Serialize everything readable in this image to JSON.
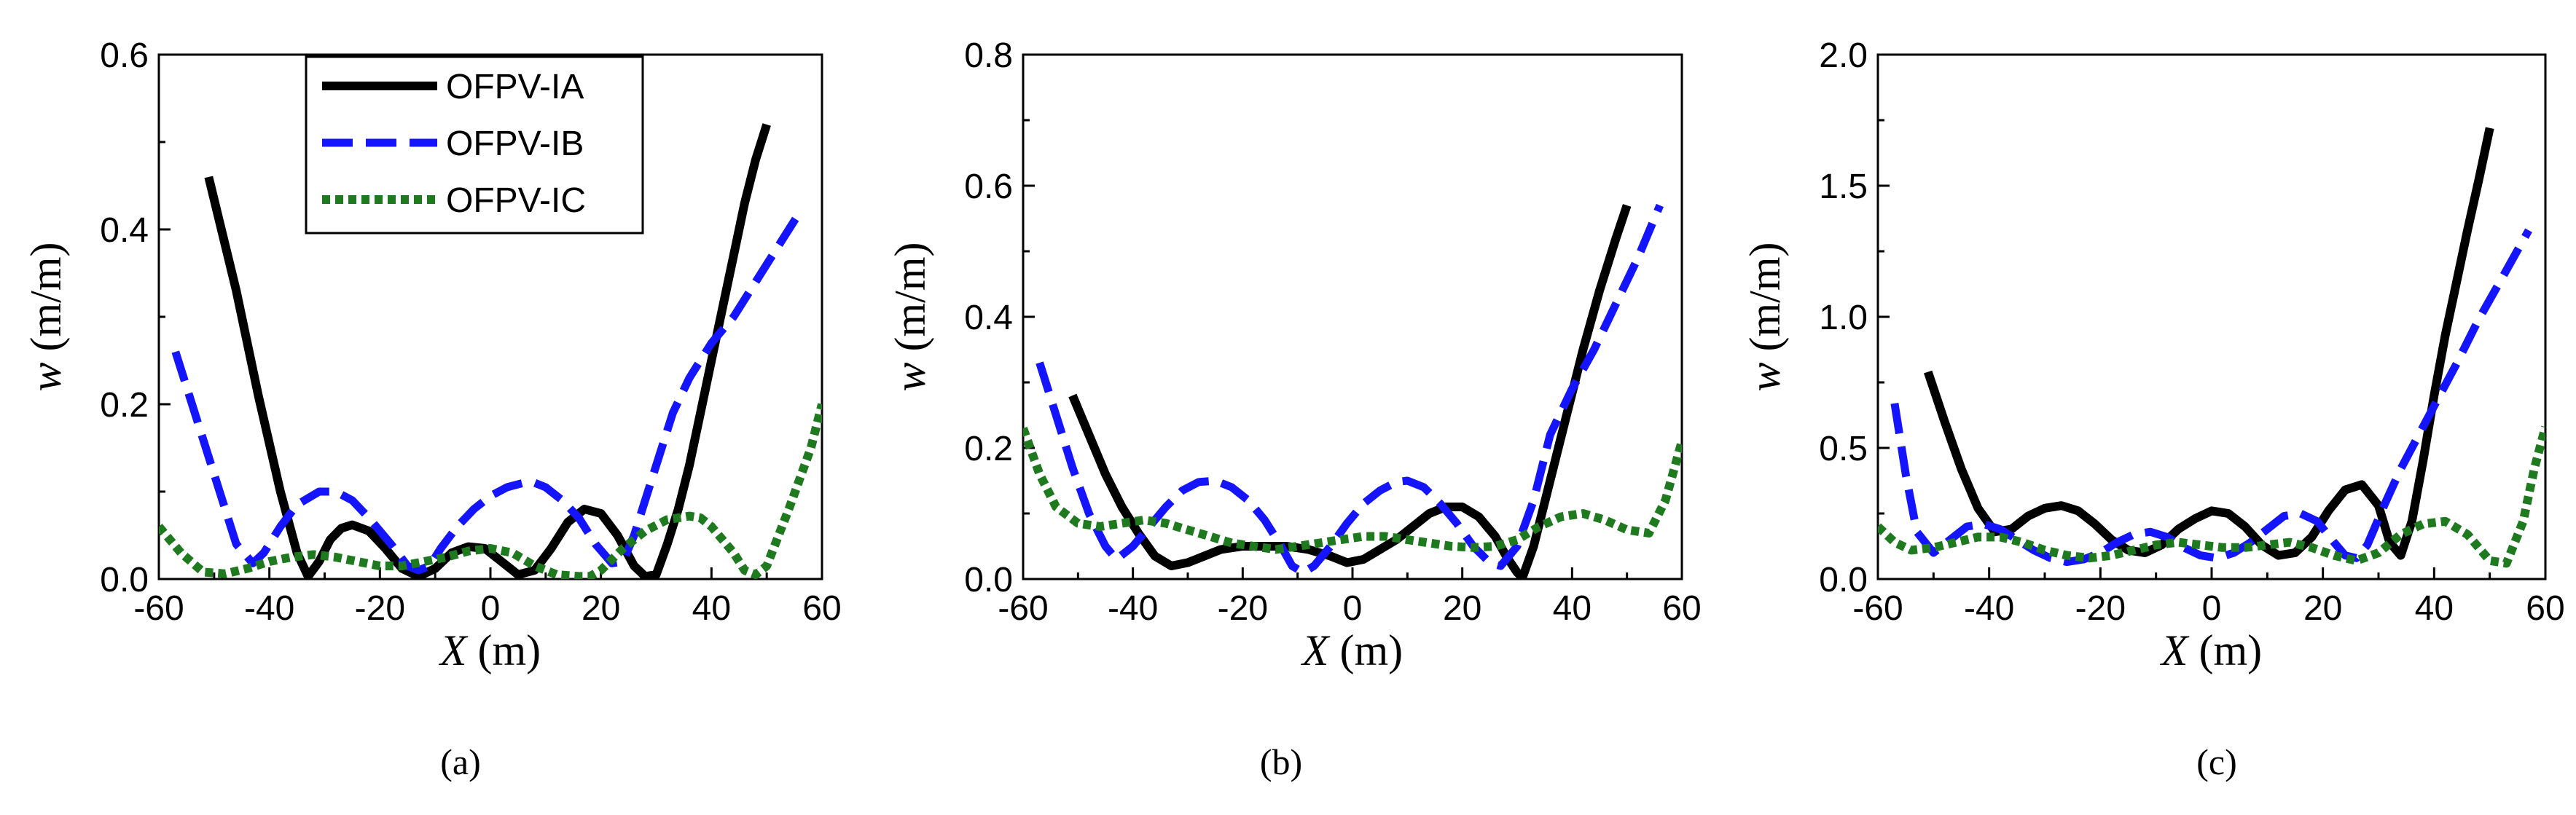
{
  "colors": {
    "OFPV-IA": "#000000",
    "OFPV-IB": "#1414ff",
    "OFPV-IC": "#1f7a1f"
  },
  "legend": [
    "OFPV-IA",
    "OFPV-IB",
    "OFPV-IC"
  ],
  "chart_data": [
    {
      "type": "line",
      "caption": "(a)",
      "xlabel_var": "X",
      "xlabel_unit": "(m)",
      "ylabel_var": "w",
      "ylabel_unit": "(m/m)",
      "xlim": [
        -60,
        60
      ],
      "ylim": [
        0,
        0.6
      ],
      "xticks": [
        -60,
        -40,
        -20,
        0,
        20,
        40,
        60
      ],
      "yticks": [
        "0.0",
        "0.2",
        "0.4",
        "0.6"
      ],
      "has_legend": true,
      "series": [
        {
          "name": "OFPV-IA",
          "style": "solid",
          "x": [
            -51,
            -46,
            -42,
            -38,
            -35,
            -33,
            -31,
            -29,
            -27,
            -25,
            -22,
            -19,
            -16,
            -13,
            -10,
            -7,
            -4,
            -1,
            2,
            5,
            8,
            11,
            14,
            17,
            20,
            23,
            26,
            28,
            30,
            32,
            34,
            36,
            38,
            40,
            42,
            44,
            46,
            48,
            50
          ],
          "y": [
            0.46,
            0.33,
            0.21,
            0.1,
            0.03,
            0.003,
            0.02,
            0.045,
            0.058,
            0.062,
            0.055,
            0.035,
            0.012,
            0.003,
            0.012,
            0.03,
            0.037,
            0.035,
            0.02,
            0.005,
            0.01,
            0.035,
            0.065,
            0.08,
            0.075,
            0.05,
            0.015,
            0.003,
            0.005,
            0.04,
            0.08,
            0.13,
            0.19,
            0.25,
            0.31,
            0.37,
            0.43,
            0.48,
            0.52
          ]
        },
        {
          "name": "OFPV-IB",
          "style": "dashed",
          "x": [
            -57,
            -53,
            -49,
            -46,
            -43,
            -41,
            -38,
            -35,
            -31,
            -28,
            -25,
            -22,
            -18,
            -15,
            -13,
            -11,
            -9,
            -6,
            -3,
            0,
            3,
            6,
            8,
            10,
            13,
            16,
            19,
            22,
            24,
            26,
            28,
            30,
            33,
            36,
            40,
            44,
            48,
            52,
            56
          ],
          "y": [
            0.26,
            0.18,
            0.1,
            0.04,
            0.018,
            0.03,
            0.06,
            0.085,
            0.1,
            0.1,
            0.09,
            0.07,
            0.04,
            0.015,
            0.01,
            0.015,
            0.035,
            0.06,
            0.08,
            0.095,
            0.105,
            0.11,
            0.11,
            0.105,
            0.09,
            0.07,
            0.04,
            0.018,
            0.02,
            0.05,
            0.09,
            0.13,
            0.19,
            0.23,
            0.27,
            0.3,
            0.34,
            0.38,
            0.42
          ]
        },
        {
          "name": "OFPV-IC",
          "style": "dotted",
          "x": [
            -60,
            -56,
            -52,
            -48,
            -44,
            -40,
            -36,
            -32,
            -28,
            -24,
            -20,
            -16,
            -12,
            -8,
            -4,
            0,
            4,
            8,
            12,
            16,
            18,
            20,
            24,
            28,
            32,
            36,
            38,
            40,
            44,
            46,
            48,
            50,
            54,
            58,
            60
          ],
          "y": [
            0.06,
            0.03,
            0.008,
            0.006,
            0.012,
            0.02,
            0.025,
            0.028,
            0.025,
            0.02,
            0.015,
            0.015,
            0.02,
            0.025,
            0.032,
            0.035,
            0.03,
            0.015,
            0.005,
            0.003,
            0.003,
            0.01,
            0.035,
            0.055,
            0.068,
            0.072,
            0.07,
            0.06,
            0.03,
            0.01,
            0.005,
            0.015,
            0.08,
            0.15,
            0.2
          ]
        }
      ]
    },
    {
      "type": "line",
      "caption": "(b)",
      "xlabel_var": "X",
      "xlabel_unit": "(m)",
      "ylabel_var": "w",
      "ylabel_unit": "(m/m)",
      "xlim": [
        -60,
        60
      ],
      "ylim": [
        0,
        0.8
      ],
      "xticks": [
        -60,
        -40,
        -20,
        0,
        20,
        40,
        60
      ],
      "yticks": [
        "0.0",
        "0.2",
        "0.4",
        "0.6",
        "0.8"
      ],
      "has_legend": false,
      "series": [
        {
          "name": "OFPV-IA",
          "style": "solid",
          "x": [
            -51,
            -48,
            -45,
            -42,
            -39,
            -36,
            -33,
            -30,
            -27,
            -24,
            -20,
            -16,
            -12,
            -8,
            -4,
            -1,
            2,
            5,
            8,
            11,
            14,
            17,
            20,
            23,
            26,
            28,
            30,
            31,
            33,
            36,
            39,
            42,
            45,
            48,
            50
          ],
          "y": [
            0.28,
            0.22,
            0.16,
            0.11,
            0.07,
            0.035,
            0.02,
            0.025,
            0.035,
            0.045,
            0.05,
            0.05,
            0.05,
            0.045,
            0.035,
            0.025,
            0.03,
            0.045,
            0.06,
            0.08,
            0.1,
            0.11,
            0.11,
            0.095,
            0.065,
            0.035,
            0.01,
            0.003,
            0.05,
            0.15,
            0.25,
            0.35,
            0.44,
            0.52,
            0.57
          ]
        },
        {
          "name": "OFPV-IB",
          "style": "dashed",
          "x": [
            -57,
            -54,
            -51,
            -48,
            -45,
            -43,
            -40,
            -37,
            -34,
            -31,
            -28,
            -25,
            -22,
            -19,
            -16,
            -13,
            -11,
            -9,
            -7,
            -4,
            -1,
            2,
            5,
            8,
            10,
            13,
            16,
            19,
            22,
            25,
            27,
            30,
            33,
            36,
            40,
            44,
            48,
            52,
            56
          ],
          "y": [
            0.33,
            0.25,
            0.17,
            0.1,
            0.05,
            0.03,
            0.05,
            0.08,
            0.11,
            0.135,
            0.148,
            0.15,
            0.14,
            0.12,
            0.09,
            0.05,
            0.02,
            0.01,
            0.02,
            0.05,
            0.085,
            0.115,
            0.135,
            0.148,
            0.15,
            0.14,
            0.115,
            0.085,
            0.05,
            0.025,
            0.02,
            0.05,
            0.12,
            0.22,
            0.29,
            0.35,
            0.42,
            0.49,
            0.57
          ]
        },
        {
          "name": "OFPV-IC",
          "style": "dotted",
          "x": [
            -60,
            -57,
            -54,
            -50,
            -46,
            -42,
            -38,
            -34,
            -30,
            -26,
            -22,
            -18,
            -14,
            -10,
            -6,
            -2,
            2,
            6,
            10,
            14,
            18,
            22,
            26,
            30,
            34,
            38,
            42,
            46,
            50,
            54,
            57,
            60
          ],
          "y": [
            0.23,
            0.16,
            0.11,
            0.085,
            0.08,
            0.085,
            0.09,
            0.085,
            0.075,
            0.065,
            0.055,
            0.05,
            0.045,
            0.05,
            0.055,
            0.06,
            0.065,
            0.065,
            0.06,
            0.055,
            0.05,
            0.048,
            0.05,
            0.06,
            0.08,
            0.095,
            0.1,
            0.09,
            0.075,
            0.07,
            0.12,
            0.21
          ]
        }
      ]
    },
    {
      "type": "line",
      "caption": "(c)",
      "xlabel_var": "X",
      "xlabel_unit": "(m)",
      "ylabel_var": "w",
      "ylabel_unit": "(m/m)",
      "xlim": [
        -60,
        60
      ],
      "ylim": [
        0,
        2.0
      ],
      "xticks": [
        -60,
        -40,
        -20,
        0,
        20,
        40,
        60
      ],
      "yticks": [
        "0.0",
        "0.5",
        "1.0",
        "1.5",
        "2.0"
      ],
      "has_legend": false,
      "series": [
        {
          "name": "OFPV-IA",
          "style": "solid",
          "x": [
            -51,
            -48,
            -45,
            -42,
            -39,
            -36,
            -33,
            -30,
            -27,
            -24,
            -21,
            -18,
            -15,
            -12,
            -9,
            -6,
            -3,
            0,
            3,
            6,
            9,
            12,
            15,
            18,
            21,
            24,
            27,
            30,
            32,
            34,
            36,
            38,
            40,
            42,
            44,
            46,
            48,
            50
          ],
          "y": [
            0.79,
            0.6,
            0.42,
            0.27,
            0.18,
            0.19,
            0.24,
            0.27,
            0.28,
            0.26,
            0.21,
            0.15,
            0.11,
            0.1,
            0.13,
            0.19,
            0.23,
            0.26,
            0.25,
            0.2,
            0.13,
            0.09,
            0.1,
            0.16,
            0.26,
            0.34,
            0.36,
            0.28,
            0.14,
            0.09,
            0.22,
            0.45,
            0.7,
            0.93,
            1.13,
            1.33,
            1.52,
            1.72
          ]
        },
        {
          "name": "OFPV-IB",
          "style": "dashed",
          "x": [
            -57,
            -55,
            -53,
            -50,
            -47,
            -44,
            -41,
            -38,
            -35,
            -32,
            -29,
            -26,
            -23,
            -20,
            -17,
            -14,
            -11,
            -8,
            -5,
            -2,
            1,
            4,
            7,
            10,
            13,
            16,
            19,
            22,
            24,
            26,
            28,
            31,
            34,
            37,
            40,
            44,
            48,
            52,
            57
          ],
          "y": [
            0.67,
            0.4,
            0.18,
            0.1,
            0.15,
            0.2,
            0.21,
            0.19,
            0.15,
            0.11,
            0.08,
            0.065,
            0.075,
            0.1,
            0.14,
            0.17,
            0.18,
            0.16,
            0.12,
            0.09,
            0.08,
            0.1,
            0.14,
            0.19,
            0.24,
            0.25,
            0.22,
            0.14,
            0.09,
            0.08,
            0.13,
            0.28,
            0.42,
            0.54,
            0.66,
            0.82,
            0.99,
            1.14,
            1.33
          ]
        },
        {
          "name": "OFPV-IC",
          "style": "dotted",
          "x": [
            -60,
            -57,
            -54,
            -50,
            -46,
            -42,
            -38,
            -34,
            -30,
            -26,
            -22,
            -18,
            -14,
            -10,
            -6,
            -2,
            2,
            6,
            10,
            14,
            18,
            22,
            26,
            30,
            34,
            38,
            42,
            46,
            50,
            53,
            56,
            58,
            60
          ],
          "y": [
            0.2,
            0.14,
            0.11,
            0.12,
            0.14,
            0.16,
            0.16,
            0.14,
            0.11,
            0.09,
            0.08,
            0.09,
            0.11,
            0.13,
            0.14,
            0.13,
            0.12,
            0.12,
            0.13,
            0.14,
            0.12,
            0.09,
            0.07,
            0.1,
            0.17,
            0.21,
            0.22,
            0.17,
            0.07,
            0.06,
            0.22,
            0.42,
            0.58
          ]
        }
      ]
    }
  ]
}
